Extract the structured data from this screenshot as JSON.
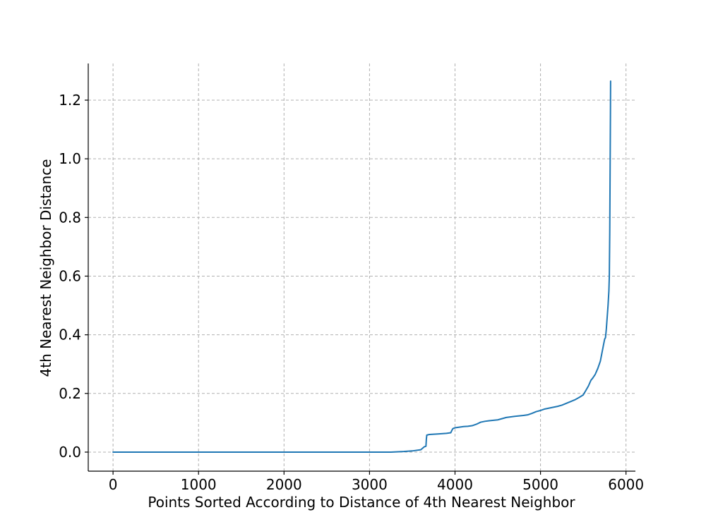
{
  "chart_data": {
    "type": "line",
    "title": "",
    "xlabel": "Points Sorted According to Distance of 4th Nearest Neighbor",
    "ylabel": "4th Nearest Neighbor Distance",
    "xlim": [
      -290,
      6110
    ],
    "ylim": [
      -0.065,
      1.325
    ],
    "xticks": [
      0,
      1000,
      2000,
      3000,
      4000,
      5000,
      6000
    ],
    "xtick_labels": [
      "0",
      "1000",
      "2000",
      "3000",
      "4000",
      "5000",
      "6000"
    ],
    "yticks": [
      0.0,
      0.2,
      0.4,
      0.6,
      0.8,
      1.0,
      1.2
    ],
    "ytick_labels": [
      "0.0",
      "0.2",
      "0.4",
      "0.6",
      "0.8",
      "1.0",
      "1.2"
    ],
    "grid": true,
    "series": [
      {
        "color": "#1f77b4",
        "x": [
          0,
          500,
          1000,
          1500,
          2000,
          2500,
          3000,
          3250,
          3400,
          3500,
          3600,
          3640,
          3660,
          3665,
          3670,
          3700,
          3800,
          3900,
          3950,
          3965,
          3975,
          4000,
          4050,
          4100,
          4150,
          4200,
          4250,
          4300,
          4350,
          4400,
          4500,
          4600,
          4700,
          4800,
          4850,
          4900,
          4950,
          5000,
          5050,
          5100,
          5150,
          5200,
          5250,
          5300,
          5350,
          5400,
          5450,
          5500,
          5530,
          5560,
          5590,
          5610,
          5640,
          5670,
          5700,
          5720,
          5740,
          5750,
          5760,
          5770,
          5780,
          5790,
          5800,
          5805,
          5810,
          5815,
          5818,
          5820
        ],
        "y": [
          0,
          0,
          0,
          0,
          0,
          0,
          0,
          0,
          0.002,
          0.004,
          0.008,
          0.018,
          0.02,
          0.045,
          0.058,
          0.06,
          0.062,
          0.064,
          0.066,
          0.075,
          0.08,
          0.083,
          0.085,
          0.087,
          0.088,
          0.09,
          0.095,
          0.102,
          0.105,
          0.107,
          0.11,
          0.118,
          0.122,
          0.125,
          0.127,
          0.132,
          0.138,
          0.142,
          0.147,
          0.15,
          0.153,
          0.156,
          0.16,
          0.166,
          0.172,
          0.178,
          0.186,
          0.195,
          0.21,
          0.225,
          0.245,
          0.252,
          0.265,
          0.285,
          0.31,
          0.34,
          0.37,
          0.385,
          0.39,
          0.42,
          0.46,
          0.5,
          0.55,
          0.6,
          0.75,
          1.0,
          1.15,
          1.265
        ]
      }
    ]
  }
}
